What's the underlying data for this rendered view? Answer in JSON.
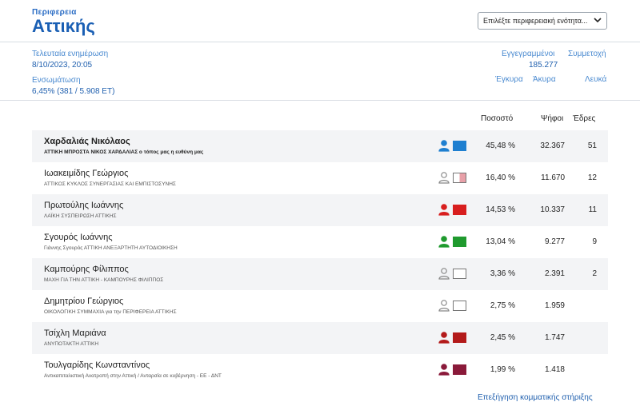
{
  "header": {
    "kicker": "Περιφερεια",
    "title": "Αττικής",
    "select_value": "Επιλέξτε περιφερειακή ενότητα..."
  },
  "info": {
    "last_update_label": "Τελευταία ενημέρωση",
    "last_update_value": "8/10/2023, 20:05",
    "integration_label": "Ενσωμάτωση",
    "integration_value": "6,45% (381 / 5.908 ΕΤ)",
    "registered_label": "Εγγεγραμμένοι",
    "registered_value": "185.277",
    "turnout_label": "Συμμετοχή",
    "valid_label": "Έγκυρα",
    "invalid_label": "Άκυρα",
    "blank_label": "Λευκά"
  },
  "table": {
    "headers": {
      "percent": "Ποσοστό",
      "votes": "Ψήφοι",
      "seats": "Έδρες"
    },
    "rows": [
      {
        "name": "Χαρδαλιάς Νικόλαος",
        "party": "ΑΤΤΙΚΗ ΜΠΡΟΣΤΑ ΝΙΚΟΣ ΧΑΡΔΑΛΙΑΣ ο τόπος μας η ευθύνη μας",
        "percent": "45,48 %",
        "votes": "32.367",
        "seats": "51",
        "color": "#1e7fd0",
        "person_color": "#1e7fd0",
        "filled": true
      },
      {
        "name": "Ιωακειμίδης Γεώργιος",
        "party": "ΑΤΤΙΚΟΣ ΚΥΚΛΟΣ ΣΥΝΕΡΓΑΣΙΑΣ ΚΑΙ ΕΜΠΙΣΤΟΣΥΝΗΣ",
        "percent": "16,40 %",
        "votes": "11.670",
        "seats": "12",
        "color": "#e8a0a8",
        "person_color": "#888888",
        "filled": false,
        "half": true
      },
      {
        "name": "Πρωτούλης Ιωάννης",
        "party": "ΛΑΪΚΗ ΣΥΣΠΕΙΡΩΣΗ ΑΤΤΙΚΗΣ",
        "percent": "14,53 %",
        "votes": "10.337",
        "seats": "11",
        "color": "#d81e1e",
        "person_color": "#d81e1e",
        "filled": true
      },
      {
        "name": "Σγουρός Ιωάννης",
        "party": "Γιάννης Σγουρός ΑΤΤΙΚΗ ΑΝΕΞΑΡΤΗΤΗ ΑΥΤΟΔΙΟΙΚΗΣΗ",
        "percent": "13,04 %",
        "votes": "9.277",
        "seats": "9",
        "color": "#1f9a2e",
        "person_color": "#1f9a2e",
        "filled": true
      },
      {
        "name": "Καμπούρης Φίλιππος",
        "party": "ΜΑΧΗ ΓΙΑ ΤΗΝ ΑΤΤΙΚΗ - ΚΑΜΠΟΥΡΗΣ ΦΙΛΙΠΠΟΣ",
        "percent": "3,36 %",
        "votes": "2.391",
        "seats": "2",
        "color": "#ffffff",
        "person_color": "#888888",
        "filled": false
      },
      {
        "name": "Δημητρίου Γεώργιος",
        "party": "ΟΙΚΟΛΟΓΙΚΗ ΣΥΜΜΑΧΙΑ για την ΠΕΡΙΦΕΡΕΙΑ ΑΤΤΙΚΗΣ",
        "percent": "2,75 %",
        "votes": "1.959",
        "seats": "",
        "color": "#ffffff",
        "person_color": "#888888",
        "filled": false
      },
      {
        "name": "Τσίχλη Μαριάνα",
        "party": "ΑΝΥΠΟΤΑΚΤΗ ΑΤΤΙΚΗ",
        "percent": "2,45 %",
        "votes": "1.747",
        "seats": "",
        "color": "#b31a1a",
        "person_color": "#b31a1a",
        "filled": true
      },
      {
        "name": "Τουλγαρίδης Κωνσταντίνος",
        "party": "Αντικαπιταλιστική Ανατροπή στην Αττική / Ανταρσία σε κυβέρνηση - ΕΕ - ΔΝΤ",
        "percent": "1,99 %",
        "votes": "1.418",
        "seats": "",
        "color": "#8a1a3a",
        "person_color": "#8a1a3a",
        "filled": true
      }
    ]
  },
  "footer": {
    "link": "Επεξήγηση κομματικής στήριξης"
  }
}
